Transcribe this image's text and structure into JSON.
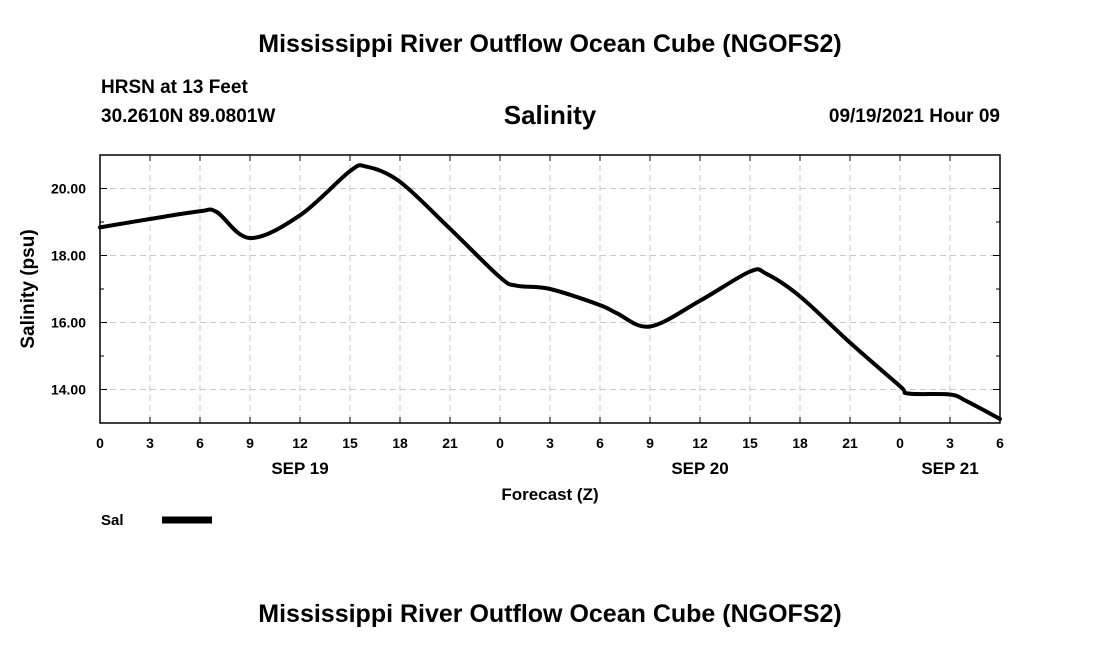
{
  "header": {
    "top_title": "Mississippi River Outflow Ocean Cube (NGOFS2)",
    "station": "HRSN at 13 Feet",
    "coords": "30.2610N  89.0801W",
    "subtitle": "Salinity",
    "datetime": "09/19/2021 Hour 09",
    "bottom_title": "Mississippi River Outflow Ocean Cube (NGOFS2)"
  },
  "colors": {
    "line": "#000000",
    "grid": "#c8c8c8",
    "frame": "#000000"
  },
  "chart_data": {
    "type": "line",
    "title": "Salinity",
    "xlabel": "Forecast (Z)",
    "ylabel": "Salinity (psu)",
    "xlim": [
      0,
      54
    ],
    "ylim": [
      13.0,
      21.0
    ],
    "grid": true,
    "legend_position": "bottom-left",
    "x_ticks": [
      0,
      3,
      6,
      9,
      12,
      15,
      18,
      21,
      24,
      27,
      30,
      33,
      36,
      39,
      42,
      45,
      48,
      51,
      54
    ],
    "x_tick_labels": [
      "0",
      "3",
      "6",
      "9",
      "12",
      "15",
      "18",
      "21",
      "0",
      "3",
      "6",
      "9",
      "12",
      "15",
      "18",
      "21",
      "0",
      "3",
      "6"
    ],
    "y_ticks": [
      14,
      16,
      18,
      20
    ],
    "y_tick_labels": [
      "14.00",
      "16.00",
      "18.00",
      "20.00"
    ],
    "date_labels": [
      {
        "x": 12,
        "label": "SEP 19"
      },
      {
        "x": 36,
        "label": "SEP 20"
      },
      {
        "x": 51,
        "label": "SEP 21"
      }
    ],
    "series": [
      {
        "name": "Sal",
        "x": [
          0,
          3,
          6,
          7,
          9,
          12,
          15,
          16,
          18,
          21,
          24,
          25,
          27,
          30,
          31,
          33,
          36,
          39,
          40,
          42,
          45,
          48,
          48.5,
          51,
          52,
          54
        ],
        "values": [
          18.84,
          19.09,
          19.32,
          19.3,
          18.52,
          19.2,
          20.52,
          20.65,
          20.2,
          18.8,
          17.35,
          17.1,
          17.0,
          16.52,
          16.28,
          15.88,
          16.65,
          17.52,
          17.45,
          16.78,
          15.4,
          14.1,
          13.88,
          13.85,
          13.65,
          13.12
        ]
      }
    ]
  }
}
